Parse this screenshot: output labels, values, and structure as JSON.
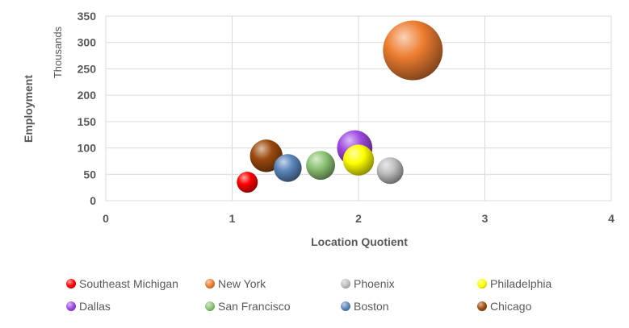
{
  "chart_data": {
    "type": "bubble",
    "xlabel": "Location Quotient",
    "ylabel": "Employment",
    "y_unit": "Thousands",
    "xlim": [
      0,
      4
    ],
    "ylim": [
      0,
      350
    ],
    "x_ticks": [
      "0",
      "1",
      "2",
      "3",
      "4"
    ],
    "y_ticks": [
      "0",
      "50",
      "100",
      "150",
      "200",
      "250",
      "300",
      "350"
    ],
    "grid": true,
    "legend_position": "bottom",
    "series": [
      {
        "name": "Southeast Michigan",
        "x": 1.12,
        "y": 35,
        "size": 35,
        "color": "#ff0000"
      },
      {
        "name": "New York",
        "x": 2.43,
        "y": 285,
        "size": 285,
        "color": "#ed7d31"
      },
      {
        "name": "Phoenix",
        "x": 2.25,
        "y": 57,
        "size": 57,
        "color": "#bfbfbf"
      },
      {
        "name": "Philadelphia",
        "x": 2.0,
        "y": 77,
        "size": 77,
        "color": "#ffff00"
      },
      {
        "name": "Dallas",
        "x": 1.97,
        "y": 100,
        "size": 100,
        "color": "#9e48e0"
      },
      {
        "name": "San Francisco",
        "x": 1.7,
        "y": 67,
        "size": 67,
        "color": "#8fc476"
      },
      {
        "name": "Boston",
        "x": 1.44,
        "y": 62,
        "size": 62,
        "color": "#5b86bb"
      },
      {
        "name": "Chicago",
        "x": 1.27,
        "y": 85,
        "size": 85,
        "color": "#9c4a0f"
      }
    ]
  }
}
